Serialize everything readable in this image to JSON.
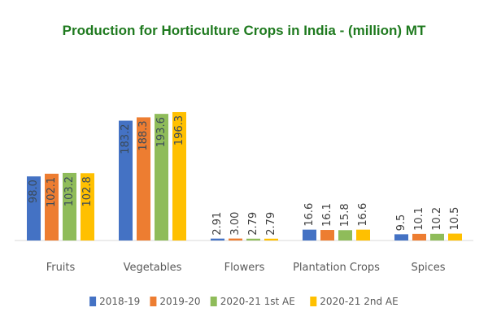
{
  "chart_data": {
    "type": "bar",
    "title": "Production for Horticulture Crops in India - (million) MT",
    "xlabel": "",
    "ylabel": "",
    "categories": [
      "Fruits",
      "Vegetables",
      "Flowers",
      "Plantation Crops",
      "Spices"
    ],
    "series": [
      {
        "name": "2018-19",
        "color": "#4472c4",
        "values": [
          98.0,
          183.2,
          2.91,
          16.6,
          9.5
        ],
        "labels": [
          "98.0",
          "183.2",
          "2.91",
          "16.6",
          "9.5"
        ]
      },
      {
        "name": "2019-20",
        "color": "#ed7d31",
        "values": [
          102.1,
          188.3,
          3.0,
          16.1,
          10.1
        ],
        "labels": [
          "102.1",
          "188.3",
          "3.00",
          "16.1",
          "10.1"
        ]
      },
      {
        "name": "2020-21 1st AE",
        "color": "#8fbc5a",
        "values": [
          103.2,
          193.6,
          2.79,
          15.8,
          10.2
        ],
        "labels": [
          "103.2",
          "193.6",
          "2.79",
          "15.8",
          "10.2"
        ]
      },
      {
        "name": "2020-21 2nd AE",
        "color": "#ffc000",
        "values": [
          102.8,
          196.3,
          2.79,
          16.6,
          10.5
        ],
        "labels": [
          "102.8",
          "196.3",
          "2.79",
          "16.6",
          "10.5"
        ]
      }
    ],
    "ylim": [
      0,
      200
    ],
    "grid": false,
    "legend": "bottom"
  }
}
